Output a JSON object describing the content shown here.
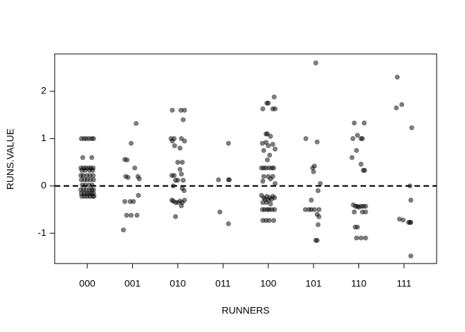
{
  "chart_data": {
    "type": "scatter",
    "x_label": "RUNNERS",
    "y_label": "RUNS.VALUE",
    "color": "#000000",
    "opacity": 0.5,
    "xlim": [
      0.28,
      8.72
    ],
    "ylim": [
      -1.64,
      2.79
    ],
    "xticks": [
      {
        "value": 1,
        "label": "000"
      },
      {
        "value": 2,
        "label": "001"
      },
      {
        "value": 3,
        "label": "010"
      },
      {
        "value": 4,
        "label": "011"
      },
      {
        "value": 5,
        "label": "100"
      },
      {
        "value": 6,
        "label": "101"
      },
      {
        "value": 7,
        "label": "110"
      },
      {
        "value": 8,
        "label": "111"
      }
    ],
    "yticks": [
      -1,
      0,
      1,
      2
    ],
    "reference_line": {
      "value": 0,
      "style": "dashed"
    },
    "x": [
      0.87,
      0.93,
      0.98,
      1.04,
      1.1,
      1.14,
      0.9,
      1.1,
      0.86,
      0.92,
      0.97,
      1.03,
      1.08,
      1.13,
      0.88,
      0.95,
      1.05,
      1.12,
      0.86,
      0.91,
      0.99,
      1.06,
      1.13,
      0.87,
      0.94,
      1.0,
      1.07,
      1.14,
      0.89,
      0.96,
      1.04,
      1.11,
      0.86,
      0.92,
      0.98,
      1.05,
      1.1,
      1.14,
      0.87,
      0.93,
      0.99,
      1.04,
      1.09,
      1.14,
      0.88,
      0.94,
      1.0,
      1.06,
      1.12,
      1.15,
      1.83,
      1.97,
      2.08,
      1.85,
      1.9,
      2.12,
      2.15,
      2.05,
      1.83,
      1.95,
      2.02,
      2.13,
      1.87,
      1.97,
      2.1,
      1.8,
      1.88,
      2.85,
      2.88,
      2.92,
      3.08,
      3.15,
      3.12,
      2.88,
      3.07,
      3.15,
      3.05,
      3.1,
      3.05,
      3.08,
      2.87,
      2.92,
      2.95,
      3.0,
      3.12,
      2.9,
      3.1,
      3.14,
      2.87,
      2.9,
      2.95,
      3.0,
      3.05,
      3.1,
      3.15,
      2.95,
      3.08,
      2.93,
      3.0,
      3.9,
      4.12,
      4.14,
      4.12,
      3.93,
      4.12,
      5.0,
      4.97,
      5.13,
      5.1,
      5.15,
      4.88,
      4.95,
      4.98,
      5.05,
      4.87,
      4.95,
      5.0,
      5.1,
      5.15,
      4.9,
      5.03,
      4.98,
      4.85,
      4.9,
      4.95,
      5.02,
      5.08,
      5.12,
      4.9,
      5.0,
      5.1,
      4.88,
      5.05,
      5.15,
      4.85,
      4.9,
      4.93,
      4.97,
      5.0,
      5.03,
      5.07,
      5.1,
      5.14,
      4.88,
      4.96,
      5.05,
      4.87,
      4.92,
      4.98,
      5.02,
      5.08,
      5.14,
      4.88,
      4.95,
      5.02,
      5.12,
      6.05,
      5.83,
      6.08,
      5.98,
      6.02,
      6.0,
      6.15,
      6.1,
      5.82,
      5.9,
      5.95,
      6.02,
      6.12,
      6.08,
      6.12,
      6.1,
      6.05,
      6.08,
      5.95,
      6.9,
      7.12,
      6.97,
      6.87,
      7.05,
      7.08,
      6.95,
      6.85,
      7.05,
      7.1,
      7.13,
      6.88,
      6.93,
      6.97,
      7.0,
      7.05,
      7.1,
      7.15,
      6.9,
      7.08,
      7.15,
      6.92,
      6.97,
      6.95,
      7.05,
      7.15,
      7.85,
      7.83,
      7.95,
      8.17,
      8.13,
      8.15,
      7.9,
      7.98,
      8.1,
      8.13,
      8.15,
      8.15
    ],
    "values": [
      1.0,
      1.0,
      1.0,
      1.0,
      1.0,
      1.0,
      0.6,
      0.6,
      0.38,
      0.38,
      0.38,
      0.38,
      0.38,
      0.38,
      0.33,
      0.33,
      0.33,
      0.33,
      0.22,
      0.22,
      0.22,
      0.22,
      0.22,
      0.13,
      0.13,
      0.13,
      0.13,
      0.13,
      0.02,
      0.02,
      0.02,
      0.02,
      -0.08,
      -0.08,
      -0.08,
      -0.08,
      -0.08,
      -0.08,
      -0.16,
      -0.16,
      -0.16,
      -0.16,
      -0.16,
      -0.16,
      -0.22,
      -0.22,
      -0.22,
      -0.22,
      -0.22,
      -0.22,
      0.56,
      0.9,
      1.32,
      0.2,
      0.18,
      0.2,
      0.15,
      0.38,
      -0.33,
      -0.33,
      -0.33,
      -0.2,
      -0.62,
      -0.62,
      -0.62,
      -0.93,
      0.55,
      1.0,
      0.95,
      1.0,
      1.0,
      0.95,
      1.4,
      1.6,
      1.6,
      1.6,
      0.8,
      0.5,
      0.35,
      0.25,
      0.22,
      0.22,
      0.12,
      0.12,
      0.12,
      0.0,
      -0.05,
      -0.1,
      -0.3,
      -0.32,
      -0.35,
      -0.35,
      -0.32,
      -0.35,
      -0.3,
      -0.65,
      -0.42,
      0.85,
      0.5,
      0.13,
      0.13,
      0.13,
      0.9,
      -0.55,
      -0.8,
      1.75,
      1.75,
      1.88,
      1.63,
      1.63,
      1.63,
      1.1,
      1.1,
      1.05,
      0.9,
      0.92,
      0.85,
      0.88,
      0.78,
      0.75,
      0.65,
      0.55,
      0.38,
      0.38,
      0.38,
      0.38,
      0.38,
      0.38,
      0.2,
      0.2,
      0.2,
      0.1,
      0.15,
      0.05,
      -0.2,
      -0.25,
      -0.28,
      -0.22,
      -0.3,
      -0.25,
      -0.28,
      -0.22,
      -0.25,
      -0.35,
      -0.35,
      -0.38,
      -0.5,
      -0.5,
      -0.5,
      -0.5,
      -0.5,
      -0.5,
      -0.73,
      -0.73,
      -0.73,
      -0.73,
      2.6,
      1.0,
      0.93,
      0.38,
      0.42,
      0.3,
      0.05,
      -0.1,
      -0.5,
      -0.5,
      -0.5,
      -0.5,
      -0.5,
      -0.6,
      -0.65,
      -0.82,
      -1.15,
      -1.15,
      -0.3,
      1.33,
      1.33,
      1.07,
      1.0,
      1.0,
      1.0,
      0.75,
      0.6,
      0.46,
      0.33,
      0.33,
      -0.4,
      -0.43,
      -0.43,
      -0.45,
      -0.43,
      -0.43,
      -0.43,
      -0.55,
      -0.55,
      -0.55,
      -0.87,
      -0.87,
      -1.1,
      -1.1,
      -1.1,
      2.3,
      1.65,
      1.72,
      1.23,
      0.0,
      -0.3,
      -0.7,
      -0.72,
      -0.77,
      -0.77,
      -0.77,
      -1.48
    ]
  }
}
